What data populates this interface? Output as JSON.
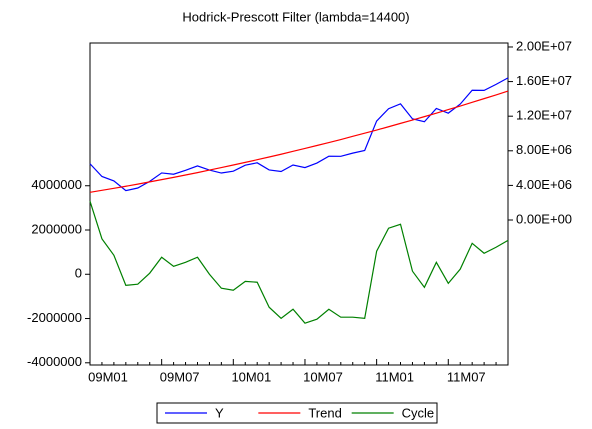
{
  "chart_data": {
    "type": "line",
    "title": "Hodrick-Prescott Filter (lambda=14400)",
    "categories": [
      "09M01",
      null,
      null,
      null,
      null,
      null,
      "09M07",
      null,
      null,
      null,
      null,
      null,
      "10M01",
      null,
      null,
      null,
      null,
      null,
      "10M07",
      null,
      null,
      null,
      null,
      null,
      "11M01",
      null,
      null,
      null,
      null,
      null,
      "11M07",
      null,
      null,
      null,
      null,
      null
    ],
    "series": [
      {
        "name": "Y",
        "color": "#0000ff",
        "axis": "y2",
        "values": [
          6500000,
          5030000,
          4520000,
          3400000,
          3700000,
          4460000,
          5440000,
          5290000,
          5740000,
          6250000,
          5770000,
          5430000,
          5640000,
          6340000,
          6610000,
          5790000,
          5610000,
          6360000,
          6060000,
          6580000,
          7370000,
          7360000,
          7730000,
          8040000,
          11440000,
          12860000,
          13430000,
          11690000,
          11360000,
          12890000,
          12350000,
          13400000,
          15000000,
          14980000,
          15680000,
          16430000
        ]
      },
      {
        "name": "Trend",
        "color": "#ff0000",
        "axis": "y2",
        "values": [
          3200000,
          3430000,
          3660000,
          3900000,
          4150000,
          4410000,
          4670000,
          4930000,
          5200000,
          5480000,
          5770000,
          6060000,
          6360000,
          6660000,
          6970000,
          7280000,
          7600000,
          7940000,
          8270000,
          8610000,
          8950000,
          9300000,
          9670000,
          10030000,
          10400000,
          10780000,
          11170000,
          11550000,
          11950000,
          12350000,
          12760000,
          13170000,
          13600000,
          14030000,
          14460000,
          14900000
        ]
      },
      {
        "name": "Cycle",
        "color": "#008000",
        "values": [
          3300000,
          1600000,
          860000,
          -500000,
          -450000,
          50000,
          770000,
          360000,
          540000,
          770000,
          0,
          -630000,
          -720000,
          -320000,
          -360000,
          -1490000,
          -1990000,
          -1580000,
          -2210000,
          -2030000,
          -1580000,
          -1940000,
          -1940000,
          -1990000,
          1040000,
          2080000,
          2260000,
          140000,
          -590000,
          540000,
          -410000,
          230000,
          1400000,
          950000,
          1220000,
          1530000
        ]
      }
    ],
    "ylim": [
      -4100000,
      10450000
    ],
    "yticks": [
      -4000000,
      -2000000,
      0,
      2000000,
      4000000
    ],
    "y2lim": [
      -16760000,
      20460000
    ],
    "y2ticks": [
      {
        "value": 0,
        "label": "0.00E+00"
      },
      {
        "value": 4000000,
        "label": "4.00E+06"
      },
      {
        "value": 8000000,
        "label": "8.00E+06"
      },
      {
        "value": 12000000,
        "label": "1.20E+07"
      },
      {
        "value": 16000000,
        "label": "1.60E+07"
      },
      {
        "value": 20000000,
        "label": "2.00E+07"
      }
    ],
    "legend": "bottom"
  }
}
